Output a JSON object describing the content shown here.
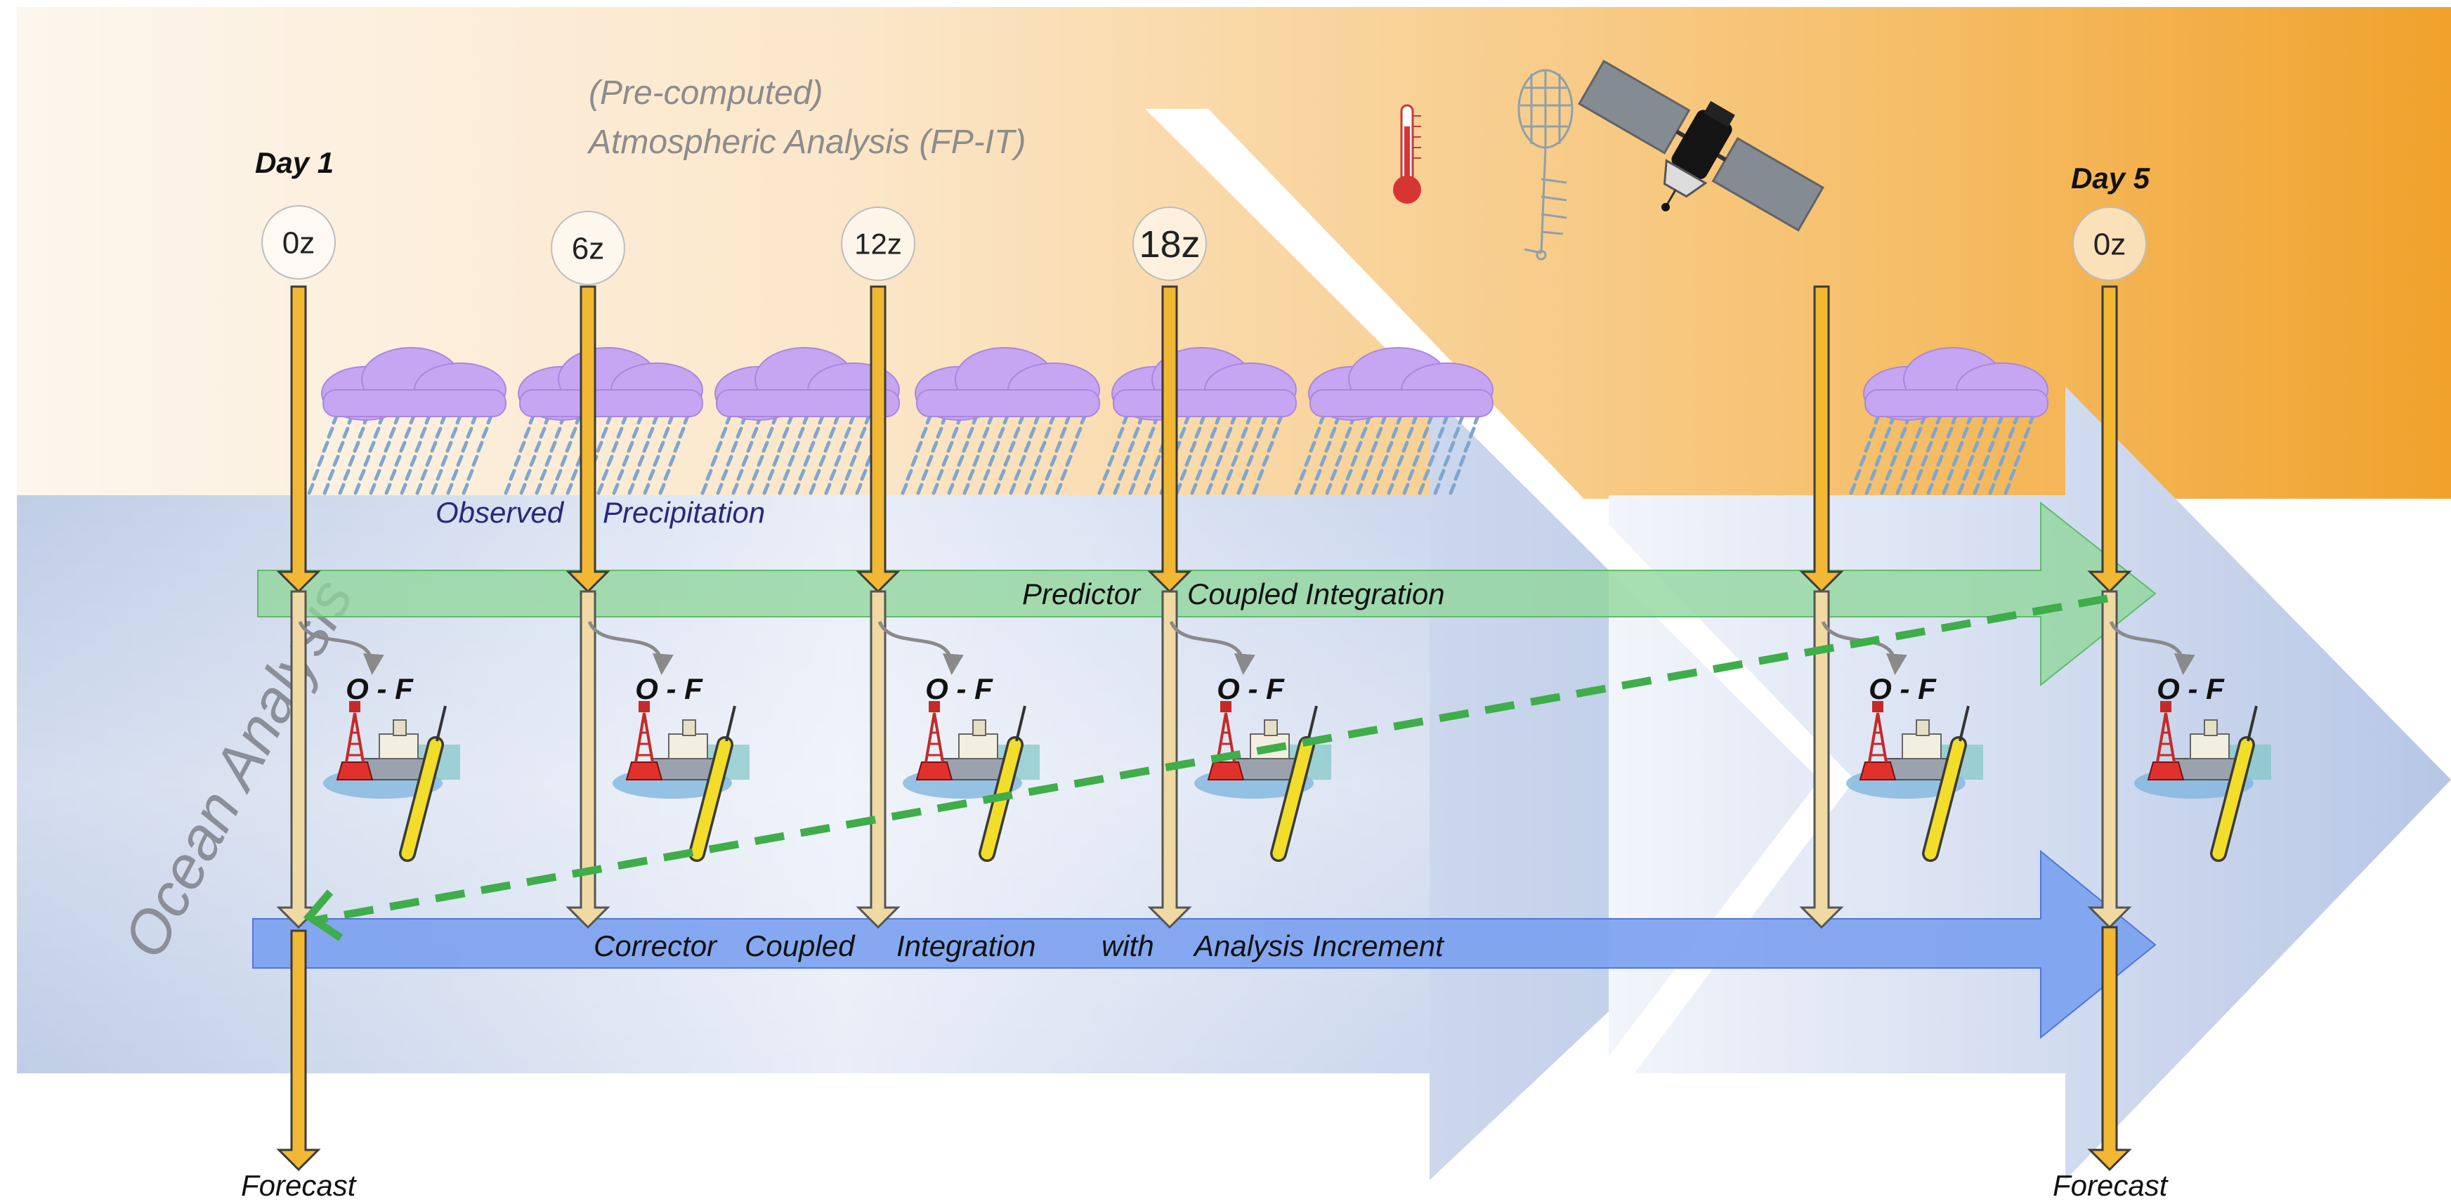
{
  "header": {
    "pre_computed": "(Pre-computed)",
    "atm_analysis": "Atmospheric Analysis (FP-IT)"
  },
  "day_labels": {
    "start": "Day 1",
    "end": "Day 5"
  },
  "times": [
    "0z",
    "6z",
    "12z",
    "18z",
    "0z"
  ],
  "ocean_analysis": "Ocean Analysis",
  "observed_precip": [
    "Observed",
    "Precipitation"
  ],
  "predictor_label": [
    "Predictor",
    "Coupled Integration"
  ],
  "corrector_label": [
    "Corrector",
    "Coupled",
    "Integration",
    "with",
    "Analysis Increment"
  ],
  "of_label": "O - F",
  "forecast_label": "Forecast",
  "icons": {
    "thermometer": "thermometer-icon",
    "radiosonde": "radiosonde-balloon-icon",
    "satellite": "satellite-icon",
    "cloud": "rain-cloud-icon",
    "ocean_obs": "buoy-ship-float-icon"
  },
  "colors": {
    "atmosphere_light": "#fdf3e6",
    "atmosphere_dark": "#f0a531",
    "ocean_band": "#bccbe6",
    "predictor": "#8fd69a",
    "corrector": "#7aa0ef",
    "time_arrow": "#f2b733",
    "cloud": "#c6a5f2",
    "rain": "#7fa6cf",
    "dashed": "#3fad4a",
    "text_navy": "#27297b",
    "text_gray": "#888888"
  }
}
